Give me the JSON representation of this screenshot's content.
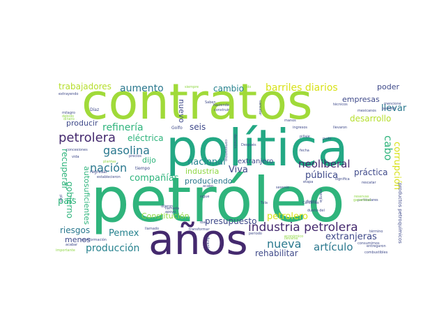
{
  "palette": {
    "purple": "#44296e",
    "indigo": "#3f4a8a",
    "blue": "#33638d",
    "teal": "#23898e",
    "green": "#2fb47c",
    "lime": "#a0da39",
    "yellow": "#d8e219",
    "gray": "#8a8a8a"
  },
  "words": [
    {
      "text": "contratos",
      "color": "#a0da39"
    },
    {
      "text": "política",
      "color": "#23a884"
    },
    {
      "text": "petróleo",
      "color": "#2fb47c"
    },
    {
      "text": "años",
      "color": "#44296e"
    },
    {
      "text": "industria petrolera",
      "color": "#44296e"
    },
    {
      "text": "petrolera",
      "color": "#44296e"
    },
    {
      "text": "gasolina",
      "color": "#2a788e"
    },
    {
      "text": "nación",
      "color": "#2a788e"
    },
    {
      "text": "barriles diarios",
      "color": "#d8e219"
    },
    {
      "text": "trabajadores",
      "color": "#b5de2b"
    },
    {
      "text": "aumento",
      "color": "#2a788e"
    },
    {
      "text": "cambio",
      "color": "#26828e"
    },
    {
      "text": "refinería",
      "color": "#2fb47c"
    },
    {
      "text": "eléctrica",
      "color": "#2fb47c"
    },
    {
      "text": "producir",
      "color": "#3f4a8a"
    },
    {
      "text": "compañías",
      "color": "#2fb47c"
    },
    {
      "text": "nacional",
      "color": "#26828e"
    },
    {
      "text": "dijo",
      "color": "#2fb47c"
    },
    {
      "text": "Viva",
      "color": "#3f4a8a"
    },
    {
      "text": "industria",
      "color": "#8fd744"
    },
    {
      "text": "produciendo",
      "color": "#2a788e"
    },
    {
      "text": "extranjero",
      "color": "#3f4a8a"
    },
    {
      "text": "seis",
      "color": "#3f4a8a"
    },
    {
      "text": "nuevo",
      "color": "#3f4a8a"
    },
    {
      "text": "gobierno",
      "color": "#2fb47c"
    },
    {
      "text": "recuperar",
      "color": "#2fb47c"
    },
    {
      "text": "autosuficientes",
      "color": "#2fb47c"
    },
    {
      "text": "país",
      "color": "#2fb47c"
    },
    {
      "text": "riesgos",
      "color": "#2a788e"
    },
    {
      "text": "Constitución",
      "color": "#8fd744"
    },
    {
      "text": "Pemex",
      "color": "#26828e"
    },
    {
      "text": "menos",
      "color": "#3f4a8a"
    },
    {
      "text": "producción",
      "color": "#26828e"
    },
    {
      "text": "presupuesto",
      "color": "#3f4a8a"
    },
    {
      "text": "neoliberal",
      "color": "#44296e"
    },
    {
      "text": "pública",
      "color": "#3f4a8a"
    },
    {
      "text": "práctica",
      "color": "#3f4a8a"
    },
    {
      "text": "petrolero",
      "color": "#d8e219"
    },
    {
      "text": "nueva",
      "color": "#2a788e"
    },
    {
      "text": "artículo",
      "color": "#2a788e"
    },
    {
      "text": "rehabilitar",
      "color": "#3f4a8a"
    },
    {
      "text": "extranjeras",
      "color": "#3f4a8a"
    },
    {
      "text": "empresas",
      "color": "#3f4a8a"
    },
    {
      "text": "desarrollo",
      "color": "#b5de2b"
    },
    {
      "text": "llevar",
      "color": "#2a788e"
    },
    {
      "text": "cabo",
      "color": "#2fb47c"
    },
    {
      "text": "corrupción",
      "color": "#d8e219"
    },
    {
      "text": "poder",
      "color": "#3f4a8a"
    },
    {
      "text": "Golfo",
      "color": "#3f4a8a"
    },
    {
      "text": "tiempo",
      "color": "#3f4a8a"
    },
    {
      "text": "regresar",
      "color": "#3f4a8a"
    },
    {
      "text": "Díaz",
      "color": "#3f4a8a"
    },
    {
      "text": "extrayendo",
      "color": "#3f4a8a"
    },
    {
      "text": "milagro",
      "color": "#3f4a8a"
    },
    {
      "text": "concesiones",
      "color": "#3f4a8a"
    },
    {
      "text": "vida",
      "color": "#3f4a8a"
    },
    {
      "text": "precios",
      "color": "#3f4a8a"
    },
    {
      "text": "transformación",
      "color": "#3f4a8a"
    },
    {
      "text": "acabar",
      "color": "#3f4a8a"
    },
    {
      "text": "importante",
      "color": "#8fd744"
    },
    {
      "text": "llamado",
      "color": "#3f4a8a"
    },
    {
      "text": "apoyo",
      "color": "#3f4a8a"
    },
    {
      "text": "dijeron",
      "color": "#3f4a8a"
    },
    {
      "text": "decisión",
      "color": "#3f4a8a"
    },
    {
      "text": "Después",
      "color": "#3f4a8a"
    },
    {
      "text": "ingresos",
      "color": "#3f4a8a"
    },
    {
      "text": "pillaje",
      "color": "#3f4a8a"
    },
    {
      "text": "fecha",
      "color": "#3f4a8a"
    },
    {
      "text": "pudo",
      "color": "#3f4a8a"
    },
    {
      "text": "Cárdenas",
      "color": "#3f4a8a"
    },
    {
      "text": "dueño",
      "color": "#3f4a8a"
    },
    {
      "text": "Tula",
      "color": "#3f4a8a"
    },
    {
      "text": "técnicos",
      "color": "#3f4a8a"
    },
    {
      "text": "llevaron",
      "color": "#3f4a8a"
    },
    {
      "text": "mexicanos",
      "color": "#3f4a8a"
    },
    {
      "text": "permitir",
      "color": "#3f4a8a"
    },
    {
      "text": "mencione",
      "color": "#3f4a8a"
    },
    {
      "text": "rescatar",
      "color": "#3f4a8a"
    },
    {
      "text": "significa",
      "color": "#3f4a8a"
    },
    {
      "text": "productos petroquímicos",
      "color": "#3f4a8a"
    },
    {
      "text": "combustibles",
      "color": "#3f4a8a"
    },
    {
      "text": "consumimos",
      "color": "#3f4a8a"
    },
    {
      "text": "entregaron",
      "color": "#3f4a8a"
    },
    {
      "text": "particulares",
      "color": "#3f4a8a"
    },
    {
      "text": "periodo",
      "color": "#3f4a8a"
    },
    {
      "text": "iban",
      "color": "#3f4a8a"
    },
    {
      "text": "sigue",
      "color": "#3f4a8a"
    },
    {
      "text": "acabo",
      "color": "#3f4a8a"
    },
    {
      "text": "establecieron",
      "color": "#3f4a8a"
    },
    {
      "text": "construir",
      "color": "#3f4a8a"
    },
    {
      "text": "manos",
      "color": "#3f4a8a"
    },
    {
      "text": "hacienda",
      "color": "#3f4a8a"
    },
    {
      "text": "Saben",
      "color": "#3f4a8a"
    },
    {
      "text": "transformar",
      "color": "#3f4a8a"
    },
    {
      "text": "etapa",
      "color": "#3f4a8a"
    },
    {
      "text": "sexenio",
      "color": "#3f4a8a"
    },
    {
      "text": "plan",
      "color": "#3f4a8a"
    },
    {
      "text": "cancelar",
      "color": "#3f4a8a"
    },
    {
      "text": "siempre",
      "color": "#8fd744"
    },
    {
      "text": "todo",
      "color": "#8fd744"
    },
    {
      "text": "compromiso",
      "color": "#3f4a8a"
    },
    {
      "text": "llamada",
      "color": "#3f4a8a"
    },
    {
      "text": "plantas",
      "color": "#8fd744"
    },
    {
      "text": "ganancias",
      "color": "#8fd744"
    },
    {
      "text": "reservas",
      "color": "#8fd744"
    },
    {
      "text": "debido",
      "color": "#8fd744"
    },
    {
      "text": "dinero",
      "color": "#8fd744"
    },
    {
      "text": "energía",
      "color": "#3f4a8a"
    },
    {
      "text": "término",
      "color": "#3f4a8a"
    },
    {
      "text": "económico",
      "color": "#8fd744"
    },
    {
      "text": "llevarse",
      "color": "#8fd744"
    },
    {
      "text": "durante",
      "color": "#3f4a8a"
    },
    {
      "text": "dueño del",
      "color": "#3f4a8a"
    }
  ]
}
